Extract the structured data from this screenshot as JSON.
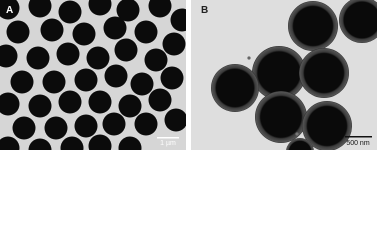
{
  "panels": [
    {
      "label": "A",
      "scale_bar": "1 µm"
    },
    {
      "label": "B",
      "scale_bar": "500 nm"
    }
  ]
}
